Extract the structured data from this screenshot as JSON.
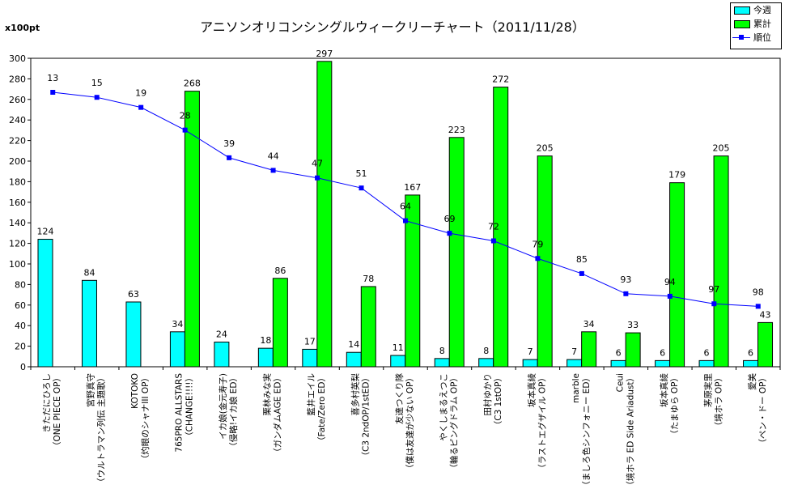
{
  "unit_label": "x100pt",
  "title": "アニソンオリコンシングルウィークリーチャート（2011/11/28）",
  "legend": {
    "weekly": "今週",
    "cumulative": "累計",
    "rank": "順位"
  },
  "colors": {
    "weekly": "#00ffff",
    "cumulative": "#00ff00",
    "rank": "#0000ff"
  },
  "chart_data": {
    "type": "bar",
    "ylim": [
      0,
      300
    ],
    "ytick_step": 20,
    "categories": [
      [
        "きただにひろし",
        "（ONE PIECE OP）"
      ],
      [
        "宮野真守",
        "（ウルトラマン列伝 主題歌）"
      ],
      [
        "KOTOKO",
        "（灼眼のシャナIII OP）"
      ],
      [
        "765PRO ALLSTARS",
        "（CHANGE!!!!）"
      ],
      [
        "イカ娘(金元寿子)",
        "（侵略!イカ娘 ED）"
      ],
      [
        "栗林みな実",
        "（ガンダムAGE ED）"
      ],
      [
        "藍井エイル",
        "（Fate/Zero ED）"
      ],
      [
        "喜多村英梨",
        "（C3 2ndOP/1stED）"
      ],
      [
        "友達つくり隊",
        "（僕は友達が少ない OP）"
      ],
      [
        "やくしまるえつこ",
        "（輪るピングドラム OP）"
      ],
      [
        "田村ゆかり",
        "（C3 1stOP）"
      ],
      [
        "坂本真綾",
        "（ラストエグザイル OP）"
      ],
      [
        "marble",
        "（ましろ色シンフォニー ED）"
      ],
      [
        "Ceui",
        "（境ホラ ED Side Ariadust）"
      ],
      [
        "坂本真綾",
        "（たまゆら OP）"
      ],
      [
        "茅原実里",
        "（境ホラ OP）"
      ],
      [
        "愛美",
        "（ペン・ドー OP）"
      ]
    ],
    "series": [
      {
        "name": "今週",
        "values": [
          124,
          84,
          63,
          34,
          24,
          18,
          17,
          14,
          11,
          8,
          8,
          7,
          7,
          6,
          6,
          6,
          6
        ]
      },
      {
        "name": "累計",
        "values": [
          null,
          null,
          null,
          268,
          null,
          86,
          297,
          78,
          167,
          223,
          272,
          205,
          34,
          33,
          179,
          205,
          43
        ]
      },
      {
        "name": "順位",
        "type": "line",
        "values": [
          13,
          15,
          19,
          28,
          39,
          44,
          47,
          51,
          64,
          69,
          72,
          79,
          85,
          93,
          94,
          97,
          98
        ]
      }
    ]
  }
}
